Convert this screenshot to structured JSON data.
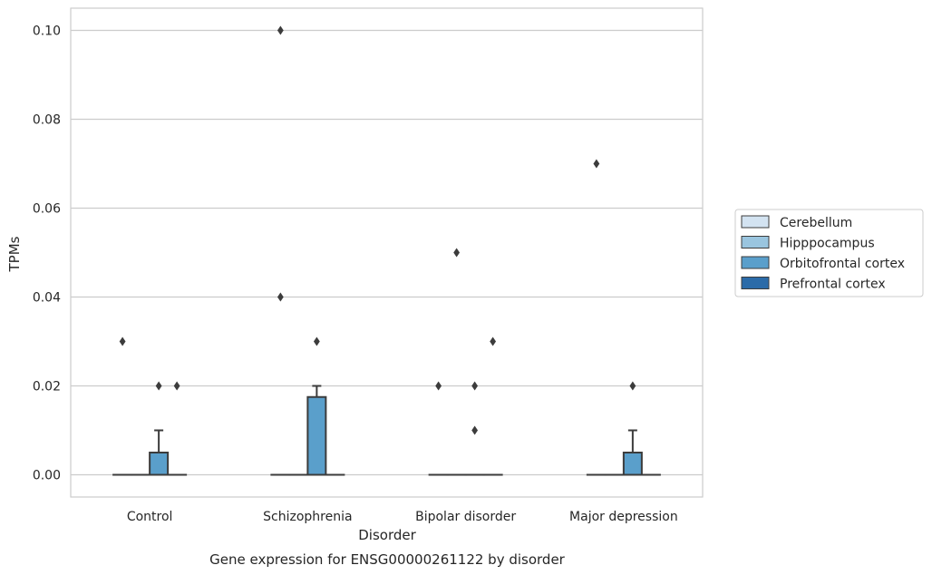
{
  "chart_data": {
    "type": "box",
    "title": "",
    "caption": "Gene expression for ENSG00000261122 by disorder",
    "xlabel": "Disorder",
    "ylabel": "TPMs",
    "ylim": [
      -0.005,
      0.105
    ],
    "yticks": [
      0.0,
      0.02,
      0.04,
      0.06,
      0.08,
      0.1
    ],
    "ytick_labels": [
      "0.00",
      "0.02",
      "0.04",
      "0.06",
      "0.08",
      "0.10"
    ],
    "grid": true,
    "legend_position": "right",
    "categories": [
      "Control",
      "Schizophrenia",
      "Bipolar disorder",
      "Major depression"
    ],
    "series": [
      {
        "name": "Cerebellum",
        "color": "#d3e3f1",
        "boxes": [
          {
            "q1": 0,
            "median": 0,
            "q3": 0,
            "whislo": 0,
            "whishi": 0,
            "fliers": [
              0.03
            ]
          },
          {
            "q1": 0,
            "median": 0,
            "q3": 0,
            "whislo": 0,
            "whishi": 0,
            "fliers": [
              0.1,
              0.04
            ]
          },
          {
            "q1": 0,
            "median": 0,
            "q3": 0,
            "whislo": 0,
            "whishi": 0,
            "fliers": [
              0.02
            ]
          },
          {
            "q1": 0,
            "median": 0,
            "q3": 0,
            "whislo": 0,
            "whishi": 0,
            "fliers": [
              0.07
            ]
          }
        ]
      },
      {
        "name": "Hipppocampus",
        "color": "#9ac5df",
        "boxes": [
          {
            "q1": 0,
            "median": 0,
            "q3": 0,
            "whislo": 0,
            "whishi": 0,
            "fliers": []
          },
          {
            "q1": 0,
            "median": 0,
            "q3": 0,
            "whislo": 0,
            "whishi": 0,
            "fliers": []
          },
          {
            "q1": 0,
            "median": 0,
            "q3": 0,
            "whislo": 0,
            "whishi": 0,
            "fliers": [
              0.05
            ]
          },
          {
            "q1": 0,
            "median": 0,
            "q3": 0,
            "whislo": 0,
            "whishi": 0,
            "fliers": []
          }
        ]
      },
      {
        "name": "Orbitofrontal cortex",
        "color": "#5a9fcb",
        "boxes": [
          {
            "q1": 0,
            "median": 0,
            "q3": 0.005,
            "whislo": 0,
            "whishi": 0.01,
            "fliers": [
              0.02
            ]
          },
          {
            "q1": 0,
            "median": 0,
            "q3": 0.0175,
            "whislo": 0,
            "whishi": 0.02,
            "fliers": [
              0.03
            ]
          },
          {
            "q1": 0,
            "median": 0,
            "q3": 0,
            "whislo": 0,
            "whishi": 0,
            "fliers": [
              0.02,
              0.01
            ]
          },
          {
            "q1": 0,
            "median": 0,
            "q3": 0.005,
            "whislo": 0,
            "whishi": 0.01,
            "fliers": [
              0.02
            ]
          }
        ]
      },
      {
        "name": "Prefrontal cortex",
        "color": "#2b6ba8",
        "boxes": [
          {
            "q1": 0,
            "median": 0,
            "q3": 0,
            "whislo": 0,
            "whishi": 0,
            "fliers": [
              0.02
            ]
          },
          {
            "q1": 0,
            "median": 0,
            "q3": 0,
            "whislo": 0,
            "whishi": 0,
            "fliers": []
          },
          {
            "q1": 0,
            "median": 0,
            "q3": 0,
            "whislo": 0,
            "whishi": 0,
            "fliers": [
              0.03
            ]
          },
          {
            "q1": 0,
            "median": 0,
            "q3": 0,
            "whislo": 0,
            "whishi": 0,
            "fliers": []
          }
        ]
      }
    ],
    "colors": {
      "grid": "#cccccc",
      "frame": "#cccccc",
      "box_edge": "#3c3c3c",
      "flier": "#3c3c3c"
    }
  }
}
